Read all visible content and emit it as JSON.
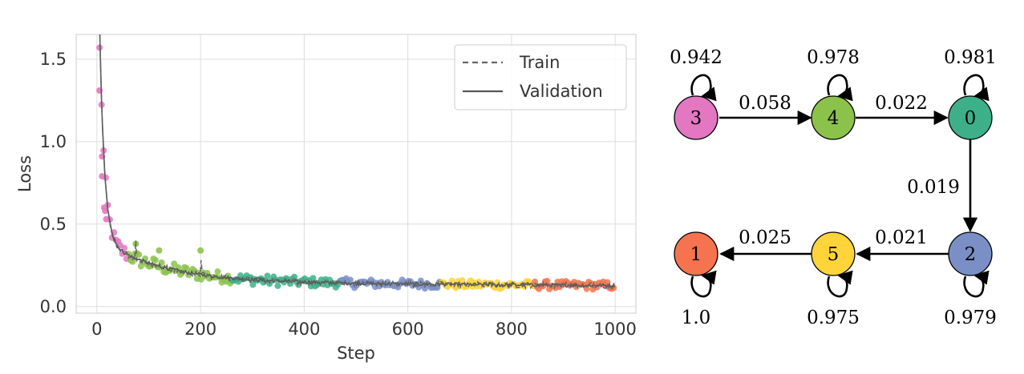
{
  "chart_data": {
    "type": "scatter",
    "xlabel": "Step",
    "ylabel": "Loss",
    "xlim": [
      -40,
      1040
    ],
    "ylim": [
      -0.04,
      1.65
    ],
    "xticks": [
      "0",
      "200",
      "400",
      "600",
      "800",
      "1000"
    ],
    "xtick_values": [
      0,
      200,
      400,
      600,
      800,
      1000
    ],
    "yticks": [
      "0.0",
      "0.5",
      "1.0",
      "1.5"
    ],
    "ytick_values": [
      0.0,
      0.5,
      1.0,
      1.5
    ],
    "grid": true,
    "legend_position": "top-right",
    "series": [
      {
        "name": "Train",
        "style": "dashed",
        "color": "#666666"
      },
      {
        "name": "Validation",
        "style": "solid",
        "color": "#555555"
      }
    ],
    "curve_model": {
      "a": 0.115,
      "b": 1.32,
      "c": 0.032,
      "start_step": 5,
      "end_step": 1000
    },
    "regimes": [
      {
        "state": "3",
        "color": "#E377C2",
        "x_start": 5,
        "x_end": 60
      },
      {
        "state": "4",
        "color": "#8BC34A",
        "x_start": 60,
        "x_end": 258
      },
      {
        "state": "0",
        "color": "#3DB08A",
        "x_start": 258,
        "x_end": 470
      },
      {
        "state": "2",
        "color": "#7B8FC7",
        "x_start": 470,
        "x_end": 665
      },
      {
        "state": "5",
        "color": "#FFD43B",
        "x_start": 665,
        "x_end": 845
      },
      {
        "state": "1",
        "color": "#F5734E",
        "x_start": 845,
        "x_end": 1000
      }
    ],
    "highlight_points": [
      {
        "x": 5,
        "y": 1.57
      },
      {
        "x": 5,
        "y": 1.31
      },
      {
        "x": 10,
        "y": 0.91
      },
      {
        "x": 10,
        "y": 0.79
      },
      {
        "x": 14,
        "y": 0.6
      },
      {
        "x": 16,
        "y": 0.58
      },
      {
        "x": 18,
        "y": 0.53
      },
      {
        "x": 75,
        "y": 0.38
      },
      {
        "x": 120,
        "y": 0.34
      },
      {
        "x": 200,
        "y": 0.34
      }
    ]
  },
  "transition_graph": {
    "nodes": [
      {
        "id": "3",
        "color": "#E377C2",
        "self_prob": "0.942"
      },
      {
        "id": "4",
        "color": "#8BC34A",
        "self_prob": "0.978"
      },
      {
        "id": "0",
        "color": "#3DB08A",
        "self_prob": "0.981"
      },
      {
        "id": "2",
        "color": "#7B8FC7",
        "self_prob": "0.979"
      },
      {
        "id": "5",
        "color": "#FFD43B",
        "self_prob": "0.975"
      },
      {
        "id": "1",
        "color": "#F5734E",
        "self_prob": "1.0"
      }
    ],
    "edges": [
      {
        "from": "3",
        "to": "4",
        "prob": "0.058"
      },
      {
        "from": "4",
        "to": "0",
        "prob": "0.022"
      },
      {
        "from": "0",
        "to": "2",
        "prob": "0.019"
      },
      {
        "from": "2",
        "to": "5",
        "prob": "0.021"
      },
      {
        "from": "5",
        "to": "1",
        "prob": "0.025"
      }
    ]
  }
}
